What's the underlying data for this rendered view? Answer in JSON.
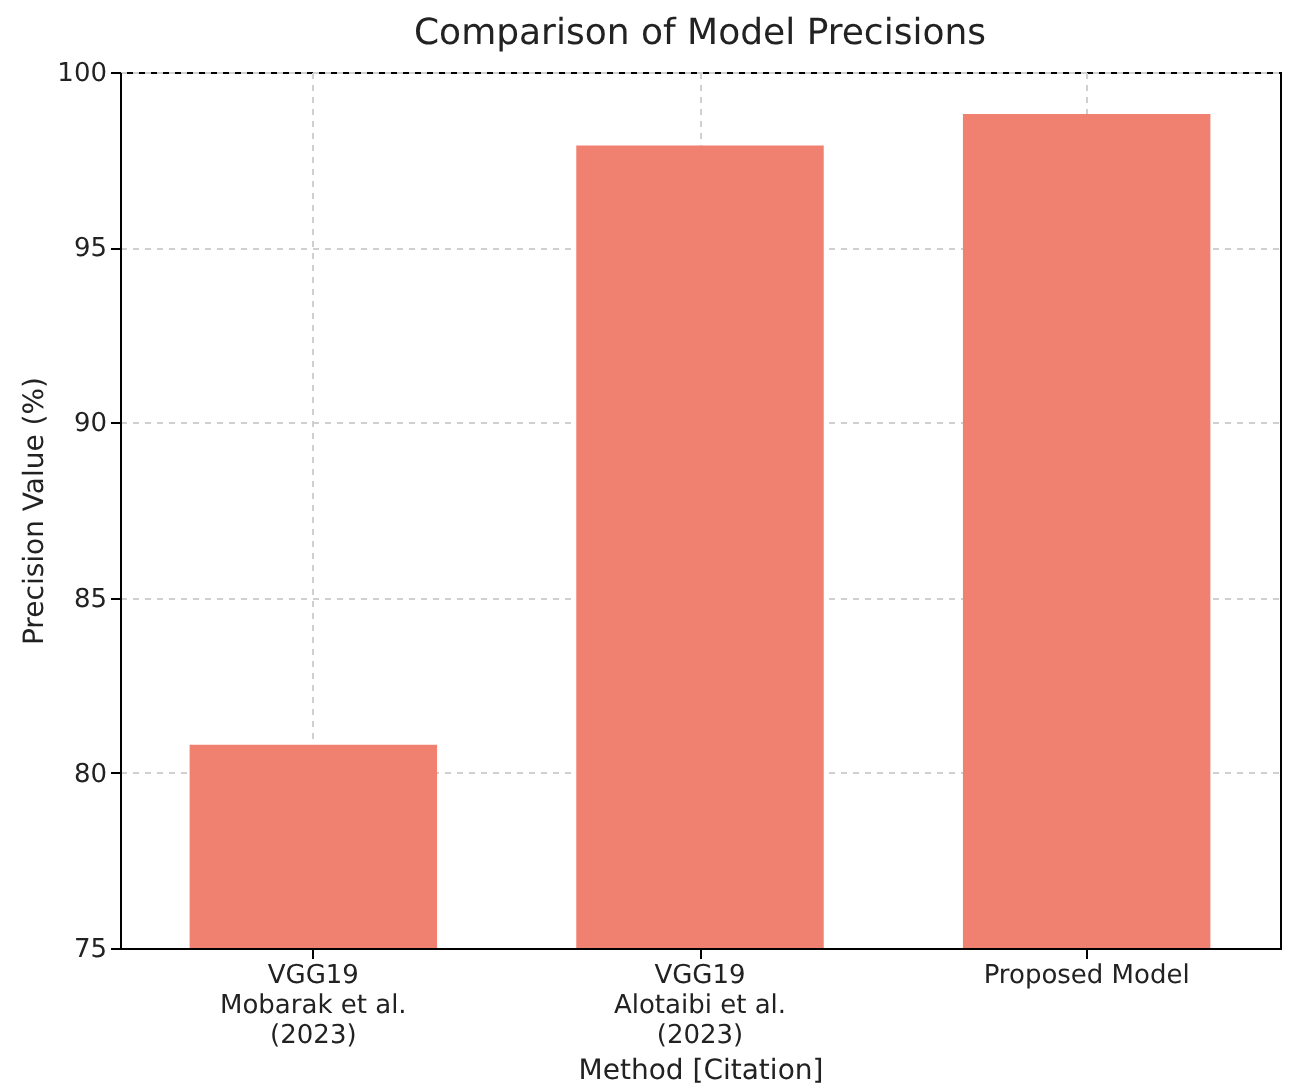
{
  "chart_data": {
    "type": "bar",
    "title": "Comparison of Model Precisions",
    "xlabel": "Method [Citation]",
    "ylabel": "Precision Value (%)",
    "categories": [
      "VGG19\nMobarak et al.\n(2023)",
      "VGG19\nAlotaibi et al.\n(2023)",
      "Proposed Model"
    ],
    "values": [
      80.8,
      97.9,
      98.8
    ],
    "color": "#f08070",
    "ylim": [
      75,
      100
    ],
    "yticks": [
      75,
      80,
      85,
      90,
      95,
      100
    ],
    "grid": true
  }
}
